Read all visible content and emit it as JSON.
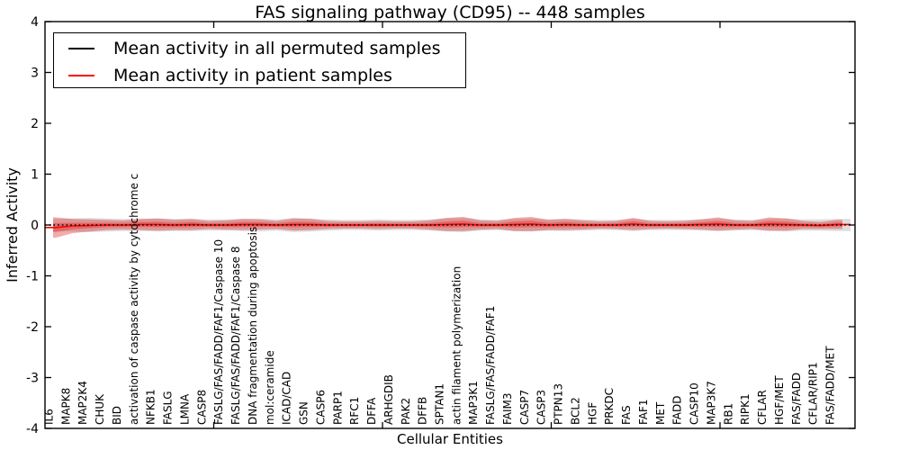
{
  "title": "FAS signaling pathway (CD95) -- 448 samples",
  "legend": {
    "items": [
      {
        "label": "Mean activity in all permuted samples",
        "color": "#000000"
      },
      {
        "label": "Mean activity in patient samples",
        "color": "#ff0000"
      }
    ]
  },
  "colors": {
    "patient_line": "#ff0000",
    "permuted_line": "#000000",
    "patient_band": "#dd2222",
    "permuted_band": "#999999",
    "axis": "#000000",
    "background": "#ffffff"
  },
  "chart_data": {
    "type": "line",
    "title": "FAS signaling pathway (CD95) -- 448 samples",
    "xlabel": "Cellular Entities",
    "ylabel": "Inferred Activity",
    "ylim": [
      -4,
      4
    ],
    "grid": false,
    "legend_position": "upper left",
    "yticks": [
      {
        "value": 4,
        "label": "4"
      },
      {
        "value": 3,
        "label": "3"
      },
      {
        "value": 2,
        "label": "2"
      },
      {
        "value": 1,
        "label": "1"
      },
      {
        "value": 0,
        "label": "0"
      },
      {
        "value": -1,
        "label": "-1"
      },
      {
        "value": -2,
        "label": "-2"
      },
      {
        "value": -3,
        "label": "-3"
      },
      {
        "value": -4,
        "label": "-4"
      }
    ],
    "x_major_ticks": [
      10,
      20,
      30,
      40
    ],
    "x_axis_span": 48,
    "categories": [
      "IL6",
      "MAPK8",
      "MAP2K4",
      "CHUK",
      "BID",
      "activation of caspase activity by cytochrome c",
      "NFKB1",
      "FASLG",
      "LMNA",
      "CASP8",
      "FASLG/FAS/FADD/FAF1/Caspase 10",
      "FASLG/FAS/FADD/FAF1/Caspase 8",
      "DNA fragmentation during apoptosis",
      "mol:ceramide",
      "ICAD/CAD",
      "GSN",
      "CASP6",
      "PARP1",
      "RFC1",
      "DFFA",
      "ARHGDIB",
      "PAK2",
      "DFFB",
      "SPTAN1",
      "actin filament polymerization",
      "MAP3K1",
      "FASLG/FAS/FADD/FAF1",
      "FAIM3",
      "CASP7",
      "CASP3",
      "PTPN13",
      "BCL2",
      "HGF",
      "PRKDC",
      "FAS",
      "FAF1",
      "MET",
      "FADD",
      "CASP10",
      "MAP3K7",
      "RB1",
      "RIPK1",
      "CFLAR",
      "HGF/MET",
      "FAS/FADD",
      "CFLAR/RIP1",
      "FAS/FADD/MET"
    ],
    "series": [
      {
        "name": "Mean activity in all permuted samples",
        "color": "#000000",
        "style": "dotted",
        "values": [
          0,
          0,
          0,
          0,
          0,
          0,
          0,
          0,
          0,
          0,
          0,
          0,
          0,
          0,
          0,
          0,
          0,
          0,
          0,
          0,
          0,
          0,
          0,
          0,
          0,
          0,
          0,
          0,
          0,
          0,
          0,
          0,
          0,
          0,
          0,
          0,
          0,
          0,
          0,
          0,
          0,
          0,
          0,
          0,
          0,
          0,
          0
        ]
      },
      {
        "name": "Mean activity in patient samples",
        "color": "#ff0000",
        "style": "solid",
        "values": [
          -0.05,
          -0.02,
          -0.01,
          0,
          0,
          0.01,
          0.01,
          0,
          0.01,
          0,
          0,
          0.01,
          0.01,
          0,
          0.01,
          0.01,
          0,
          0,
          0,
          0,
          0,
          0,
          0,
          0.01,
          0.02,
          0,
          0,
          0.01,
          0.02,
          0,
          0.01,
          0,
          0,
          0,
          0.02,
          0,
          0,
          0,
          0.01,
          0.02,
          0,
          0,
          0.02,
          0.01,
          0,
          -0.01,
          0.01
        ]
      }
    ],
    "bands": [
      {
        "name": "permuted-samples-std-band",
        "color": "#999999",
        "opacity": 0.32,
        "center": "zero",
        "half_widths": [
          0.12,
          0.13,
          0.14,
          0.13,
          0.12,
          0.12,
          0.13,
          0.12,
          0.12,
          0.11,
          0.11,
          0.12,
          0.13,
          0.11,
          0.14,
          0.13,
          0.11,
          0.1,
          0.1,
          0.11,
          0.1,
          0.1,
          0.11,
          0.13,
          0.14,
          0.11,
          0.1,
          0.12,
          0.13,
          0.11,
          0.12,
          0.11,
          0.1,
          0.1,
          0.12,
          0.1,
          0.1,
          0.1,
          0.11,
          0.12,
          0.11,
          0.1,
          0.12,
          0.13,
          0.11,
          0.11,
          0.12
        ]
      },
      {
        "name": "patient-samples-std-band",
        "color": "#dd2222",
        "opacity": 0.38,
        "center": "patient",
        "inner_scale": 0.45,
        "half_widths": [
          0.2,
          0.14,
          0.12,
          0.1,
          0.09,
          0.11,
          0.12,
          0.1,
          0.11,
          0.08,
          0.09,
          0.11,
          0.1,
          0.08,
          0.12,
          0.11,
          0.08,
          0.07,
          0.07,
          0.08,
          0.07,
          0.07,
          0.09,
          0.13,
          0.14,
          0.09,
          0.08,
          0.13,
          0.14,
          0.1,
          0.11,
          0.09,
          0.07,
          0.08,
          0.12,
          0.08,
          0.07,
          0.08,
          0.1,
          0.13,
          0.09,
          0.08,
          0.13,
          0.12,
          0.08,
          0.07,
          0.09
        ]
      }
    ]
  }
}
